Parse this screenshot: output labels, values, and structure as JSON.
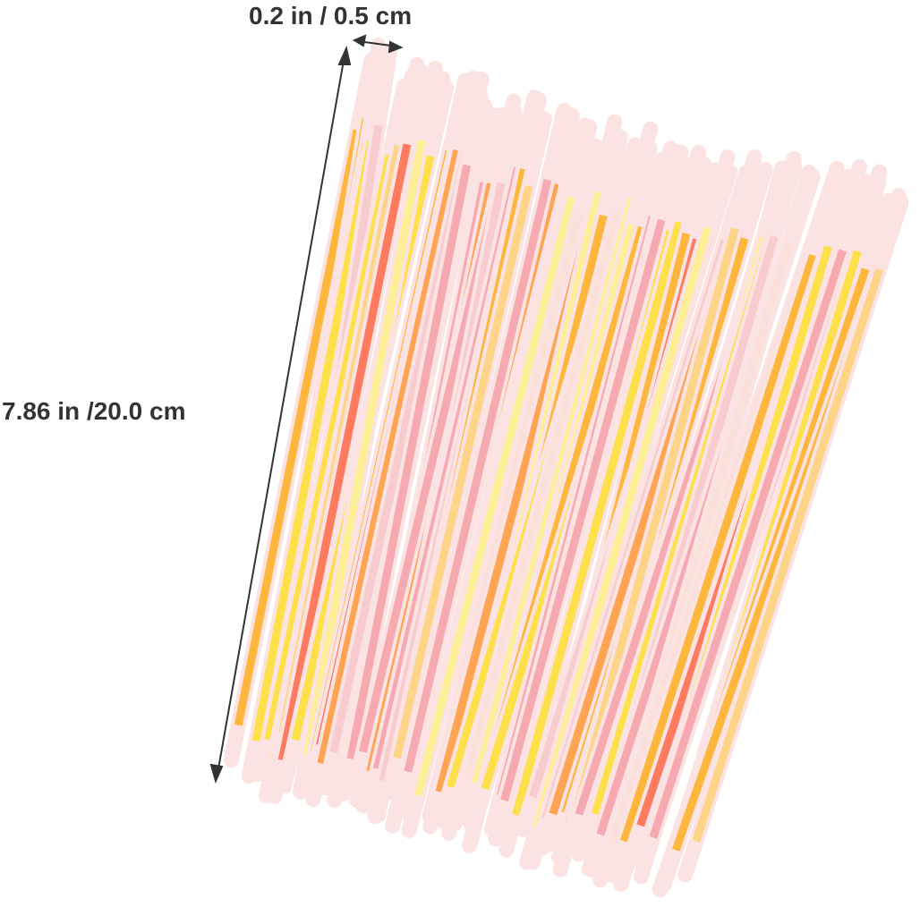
{
  "annotations": {
    "width": "0.2 in / 0.5 cm",
    "length": "7.86 in /20.0 cm"
  },
  "product": {
    "subject": "glow sticks",
    "stick_colors": [
      "#f6a0a8",
      "#f8c8cc",
      "#ff6a4a",
      "#ffb020",
      "#ffe030",
      "#fff08a",
      "#ffd27a",
      "#ff9a3a",
      "#fbe0d8"
    ]
  },
  "colors": {
    "label_text": "#333333",
    "arrow": "#333333",
    "background": "#ffffff"
  }
}
